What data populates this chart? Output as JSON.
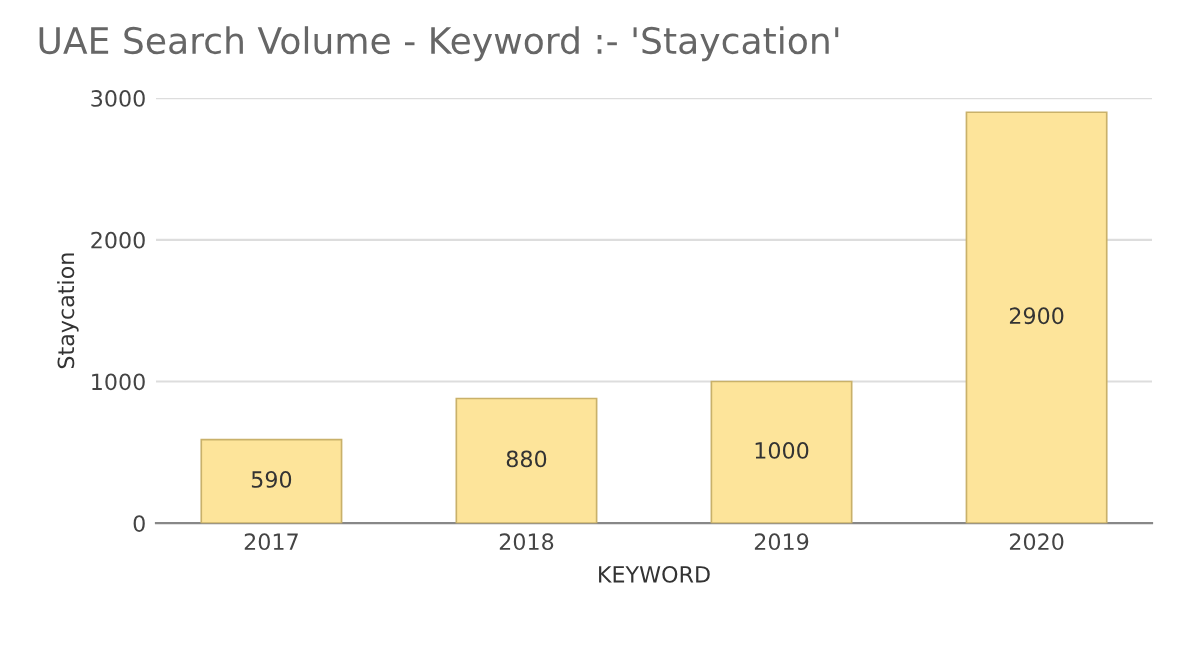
{
  "chart_data": {
    "type": "bar",
    "title": "UAE Search Volume - Keyword :- 'Staycation'",
    "xlabel": "KEYWORD",
    "ylabel": "Staycation",
    "categories": [
      "2017",
      "2018",
      "2019",
      "2020"
    ],
    "values": [
      590,
      880,
      1000,
      2900
    ],
    "color": "#fde49a",
    "ylim": [
      0,
      3000
    ],
    "yticks": [
      0,
      1000,
      2000,
      3000
    ],
    "grid": "y",
    "data_labels": true
  }
}
